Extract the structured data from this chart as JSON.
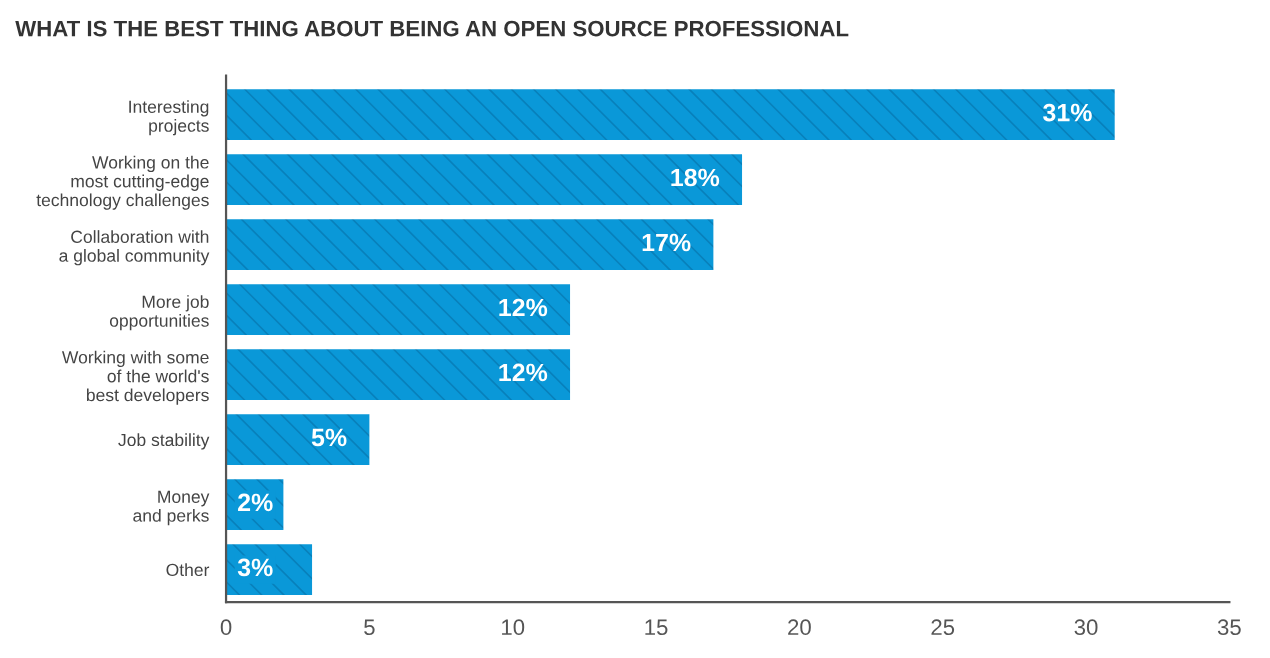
{
  "chart_data": {
    "type": "bar",
    "orientation": "horizontal",
    "title": "WHAT IS THE BEST THING ABOUT BEING AN OPEN SOURCE PROFESSIONAL",
    "categories": [
      "Interesting\nprojects",
      "Working on the\nmost cutting-edge\ntechnology challenges",
      "Collaboration with\na global community",
      "More job\nopportunities",
      "Working with some\nof the world's\nbest developers",
      "Job stability",
      "Money\nand perks",
      "Other"
    ],
    "values": [
      31,
      18,
      17,
      12,
      12,
      5,
      2,
      3
    ],
    "value_labels": [
      "31%",
      "18%",
      "17%",
      "12%",
      "12%",
      "5%",
      "2%",
      "3%"
    ],
    "color": "#0a98d8",
    "xlim": [
      0,
      35
    ],
    "xticks": [
      0,
      5,
      10,
      15,
      20,
      25,
      30,
      35
    ],
    "grid": false,
    "legend": false
  }
}
